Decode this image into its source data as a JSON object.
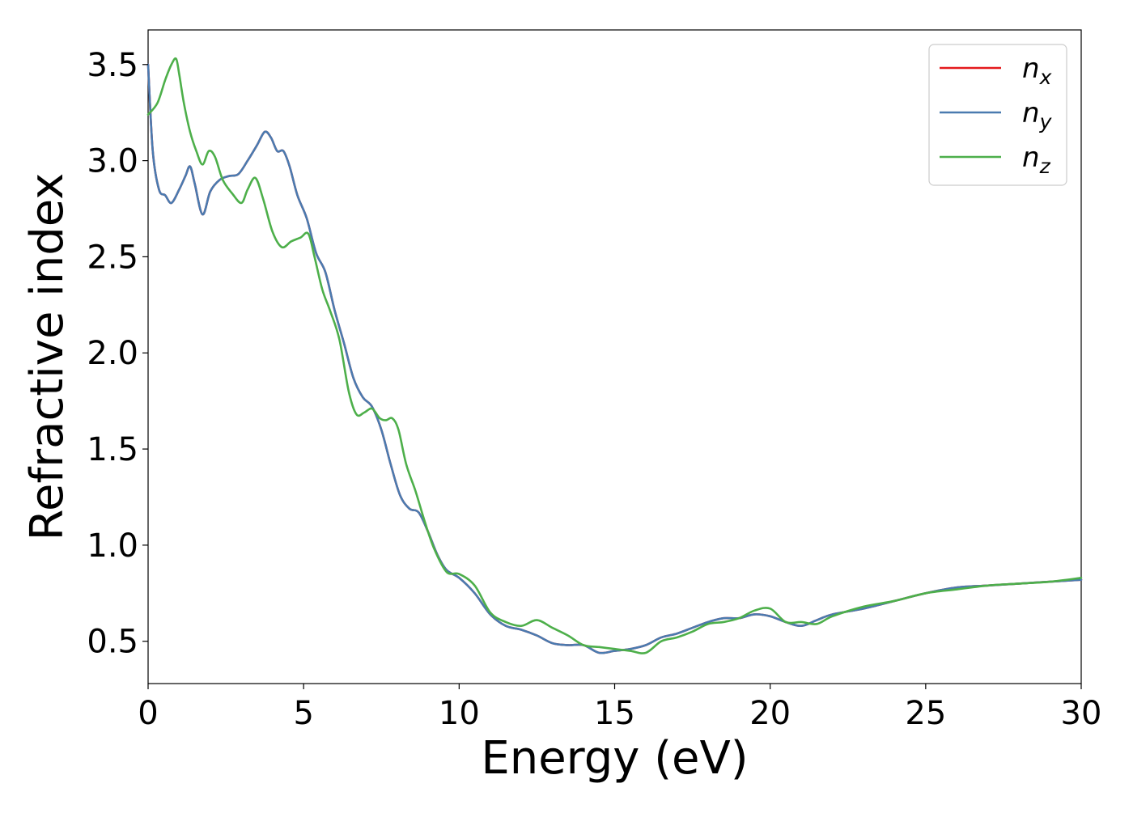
{
  "chart_data": {
    "type": "line",
    "title": "",
    "xlabel": "Energy (eV)",
    "ylabel": "Refractive index",
    "xlim": [
      0,
      30
    ],
    "ylim": [
      0.28,
      3.68
    ],
    "xticks": [
      0,
      5,
      10,
      15,
      20,
      25,
      30
    ],
    "xtick_labels": [
      "0",
      "5",
      "10",
      "15",
      "20",
      "25",
      "30"
    ],
    "yticks": [
      0.5,
      1.0,
      1.5,
      2.0,
      2.5,
      3.0,
      3.5
    ],
    "ytick_labels": [
      "0.5",
      "1.0",
      "1.5",
      "2.0",
      "2.5",
      "3.0",
      "3.5"
    ],
    "grid": false,
    "legend_position": "top-right",
    "series": [
      {
        "name": "n",
        "subscript": "x",
        "color": "#e41a1c",
        "x": [
          0,
          0.15,
          0.35,
          0.55,
          0.75,
          1.0,
          1.2,
          1.35,
          1.5,
          1.75,
          2.0,
          2.3,
          2.6,
          2.9,
          3.2,
          3.5,
          3.75,
          3.95,
          4.15,
          4.35,
          4.55,
          4.8,
          5.1,
          5.4,
          5.7,
          6.0,
          6.3,
          6.6,
          6.9,
          7.2,
          7.5,
          7.8,
          8.1,
          8.4,
          8.7,
          9.0,
          9.3,
          9.6,
          10.0,
          10.5,
          11.0,
          11.5,
          12.0,
          12.5,
          13.0,
          13.5,
          14.0,
          14.5,
          15.0,
          15.5,
          16.0,
          16.5,
          17.0,
          17.5,
          18.0,
          18.5,
          19.0,
          19.5,
          20.0,
          20.5,
          21.0,
          21.5,
          22.0,
          23.0,
          24.0,
          25.0,
          26.0,
          27.0,
          28.0,
          29.0,
          30.0
        ],
        "values": [
          3.5,
          3.05,
          2.85,
          2.82,
          2.78,
          2.85,
          2.92,
          2.97,
          2.88,
          2.72,
          2.84,
          2.9,
          2.92,
          2.93,
          3.0,
          3.08,
          3.15,
          3.12,
          3.05,
          3.05,
          2.97,
          2.82,
          2.7,
          2.52,
          2.42,
          2.22,
          2.05,
          1.87,
          1.77,
          1.72,
          1.6,
          1.42,
          1.26,
          1.19,
          1.17,
          1.07,
          0.95,
          0.87,
          0.83,
          0.75,
          0.64,
          0.58,
          0.56,
          0.53,
          0.49,
          0.48,
          0.48,
          0.44,
          0.45,
          0.46,
          0.48,
          0.52,
          0.54,
          0.57,
          0.6,
          0.62,
          0.62,
          0.64,
          0.63,
          0.6,
          0.58,
          0.61,
          0.64,
          0.67,
          0.71,
          0.75,
          0.78,
          0.79,
          0.8,
          0.81,
          0.82
        ]
      },
      {
        "name": "n",
        "subscript": "y",
        "color": "#4a7bb0",
        "x": [
          0,
          0.15,
          0.35,
          0.55,
          0.75,
          1.0,
          1.2,
          1.35,
          1.5,
          1.75,
          2.0,
          2.3,
          2.6,
          2.9,
          3.2,
          3.5,
          3.75,
          3.95,
          4.15,
          4.35,
          4.55,
          4.8,
          5.1,
          5.4,
          5.7,
          6.0,
          6.3,
          6.6,
          6.9,
          7.2,
          7.5,
          7.8,
          8.1,
          8.4,
          8.7,
          9.0,
          9.3,
          9.6,
          10.0,
          10.5,
          11.0,
          11.5,
          12.0,
          12.5,
          13.0,
          13.5,
          14.0,
          14.5,
          15.0,
          15.5,
          16.0,
          16.5,
          17.0,
          17.5,
          18.0,
          18.5,
          19.0,
          19.5,
          20.0,
          20.5,
          21.0,
          21.5,
          22.0,
          23.0,
          24.0,
          25.0,
          26.0,
          27.0,
          28.0,
          29.0,
          30.0
        ],
        "values": [
          3.5,
          3.05,
          2.85,
          2.82,
          2.78,
          2.85,
          2.92,
          2.97,
          2.88,
          2.72,
          2.84,
          2.9,
          2.92,
          2.93,
          3.0,
          3.08,
          3.15,
          3.12,
          3.05,
          3.05,
          2.97,
          2.82,
          2.7,
          2.52,
          2.42,
          2.22,
          2.05,
          1.87,
          1.77,
          1.72,
          1.6,
          1.42,
          1.26,
          1.19,
          1.17,
          1.07,
          0.95,
          0.87,
          0.83,
          0.75,
          0.64,
          0.58,
          0.56,
          0.53,
          0.49,
          0.48,
          0.48,
          0.44,
          0.45,
          0.46,
          0.48,
          0.52,
          0.54,
          0.57,
          0.6,
          0.62,
          0.62,
          0.64,
          0.63,
          0.6,
          0.58,
          0.61,
          0.64,
          0.67,
          0.71,
          0.75,
          0.78,
          0.79,
          0.8,
          0.81,
          0.82
        ]
      },
      {
        "name": "n",
        "subscript": "z",
        "color": "#4daf4a",
        "x": [
          0,
          0.3,
          0.55,
          0.75,
          0.9,
          1.0,
          1.15,
          1.35,
          1.55,
          1.75,
          1.95,
          2.15,
          2.4,
          2.7,
          3.0,
          3.2,
          3.45,
          3.7,
          4.0,
          4.3,
          4.6,
          4.9,
          5.15,
          5.35,
          5.6,
          5.85,
          6.15,
          6.45,
          6.7,
          6.95,
          7.2,
          7.45,
          7.65,
          7.85,
          8.05,
          8.3,
          8.6,
          8.9,
          9.2,
          9.6,
          10.0,
          10.5,
          11.0,
          11.5,
          12.0,
          12.5,
          13.0,
          13.5,
          14.0,
          14.5,
          15.0,
          15.5,
          16.0,
          16.5,
          17.0,
          17.5,
          18.0,
          18.5,
          19.0,
          19.5,
          20.0,
          20.5,
          21.0,
          21.5,
          22.0,
          23.0,
          24.0,
          25.0,
          26.0,
          27.0,
          28.0,
          29.0,
          30.0
        ],
        "values": [
          3.24,
          3.3,
          3.42,
          3.5,
          3.53,
          3.45,
          3.3,
          3.15,
          3.05,
          2.98,
          3.05,
          3.02,
          2.9,
          2.83,
          2.78,
          2.85,
          2.91,
          2.8,
          2.63,
          2.55,
          2.58,
          2.6,
          2.62,
          2.5,
          2.33,
          2.22,
          2.07,
          1.8,
          1.68,
          1.69,
          1.71,
          1.66,
          1.65,
          1.66,
          1.6,
          1.42,
          1.28,
          1.12,
          0.98,
          0.86,
          0.85,
          0.79,
          0.65,
          0.6,
          0.58,
          0.61,
          0.57,
          0.53,
          0.48,
          0.47,
          0.46,
          0.45,
          0.44,
          0.5,
          0.52,
          0.55,
          0.59,
          0.6,
          0.62,
          0.66,
          0.67,
          0.6,
          0.6,
          0.59,
          0.63,
          0.68,
          0.71,
          0.75,
          0.77,
          0.79,
          0.8,
          0.81,
          0.83
        ]
      }
    ]
  }
}
